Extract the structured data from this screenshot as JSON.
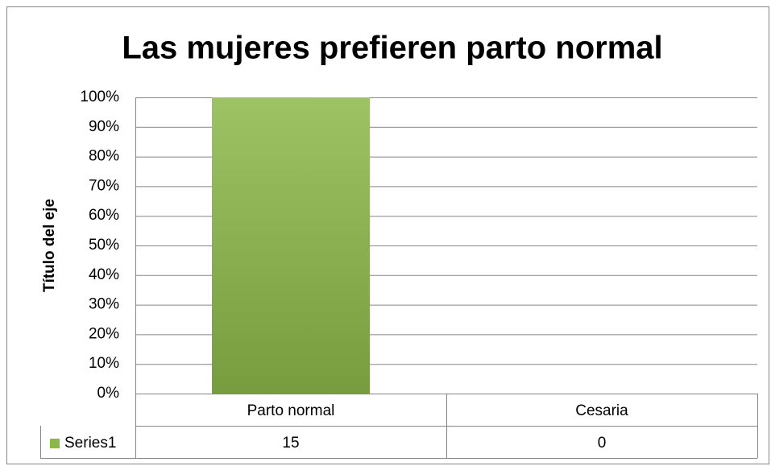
{
  "chart_data": {
    "type": "bar",
    "percent_stacked": true,
    "title": "Las mujeres prefieren parto normal",
    "y_axis_title": "Título del eje",
    "categories": [
      "Parto normal",
      "Cesaria"
    ],
    "series": [
      {
        "name": "Series1",
        "color": "#8cb84a",
        "values": [
          15,
          0
        ]
      }
    ],
    "ylim": [
      0,
      100
    ],
    "yticks": [
      {
        "value": 0,
        "label": "0%"
      },
      {
        "value": 10,
        "label": "10%"
      },
      {
        "value": 20,
        "label": "20%"
      },
      {
        "value": 30,
        "label": "30%"
      },
      {
        "value": 40,
        "label": "40%"
      },
      {
        "value": 50,
        "label": "50%"
      },
      {
        "value": 60,
        "label": "60%"
      },
      {
        "value": 70,
        "label": "70%"
      },
      {
        "value": 80,
        "label": "80%"
      },
      {
        "value": 90,
        "label": "90%"
      },
      {
        "value": 100,
        "label": "100%"
      }
    ],
    "grid": true,
    "data_table": true
  }
}
